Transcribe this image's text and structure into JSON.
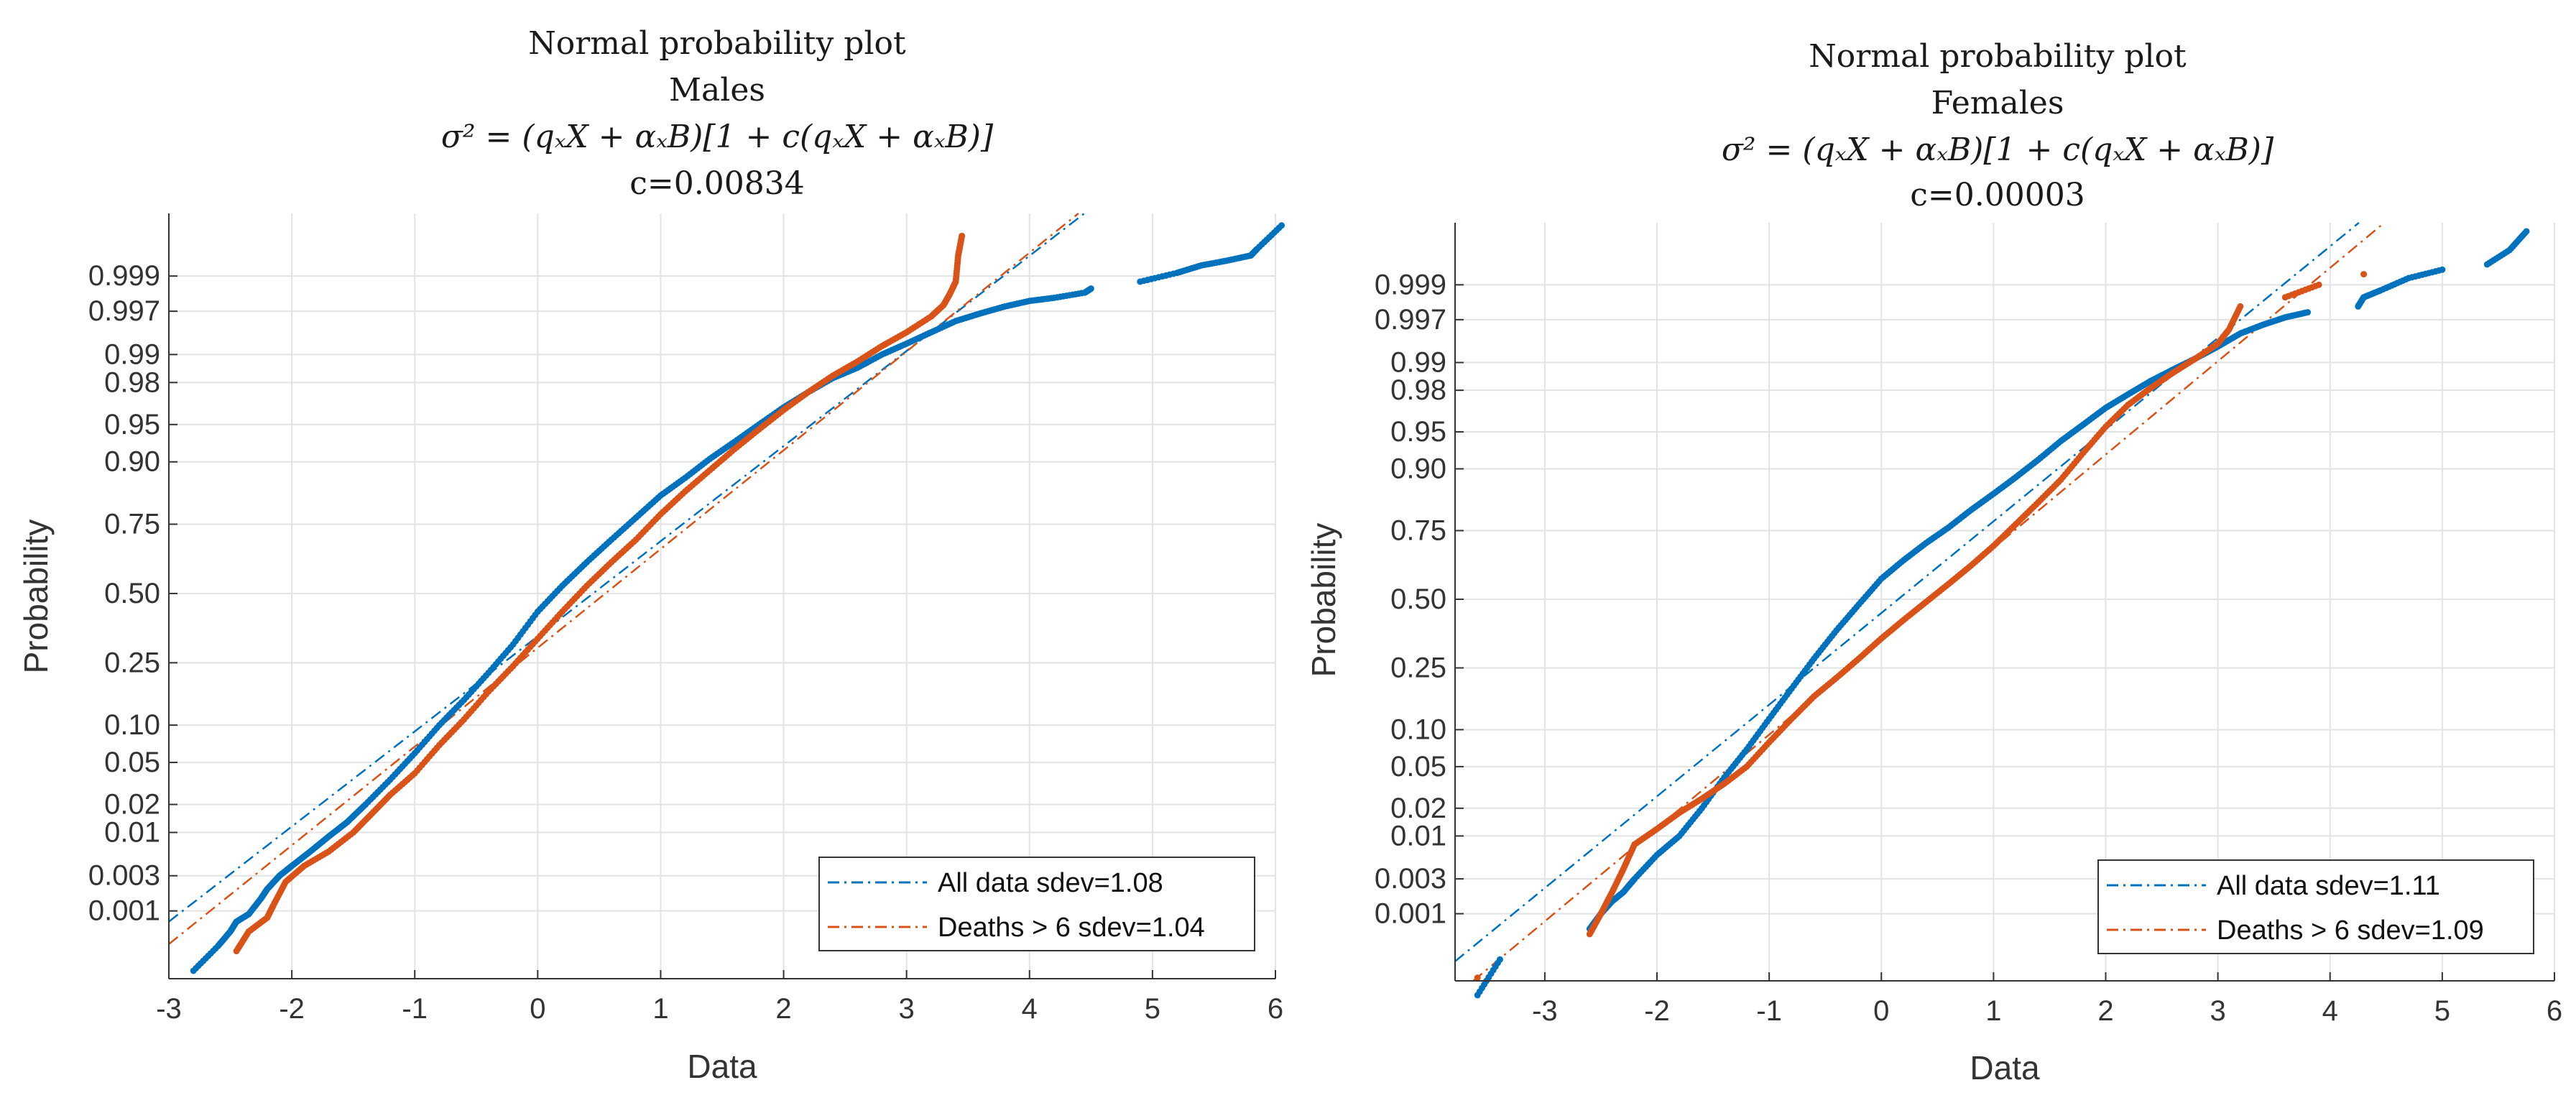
{
  "chart_data": [
    {
      "type": "scatter",
      "panel": "left",
      "title_lines": [
        "Normal probability plot",
        "Males",
        "σ² = (qₓX + αₓB)[1 + c(qₓX + αₓB)]",
        "c=0.00834"
      ],
      "xlabel": "Data",
      "ylabel": "Probability",
      "xlim": [
        -3,
        6
      ],
      "xticks": [
        -3,
        -2,
        -1,
        0,
        1,
        2,
        3,
        4,
        5,
        6
      ],
      "ytick_probabilities": [
        0.001,
        0.003,
        0.01,
        0.02,
        0.05,
        0.1,
        0.25,
        0.5,
        0.75,
        0.9,
        0.95,
        0.98,
        0.99,
        0.997,
        0.999
      ],
      "ytick_labels": [
        "0.001",
        "0.003",
        "0.01",
        "0.02",
        "0.05",
        "0.10",
        "0.25",
        "0.50",
        "0.75",
        "0.90",
        "0.95",
        "0.98",
        "0.99",
        "0.997",
        "0.999"
      ],
      "grid": true,
      "legend_position": "bottom-right",
      "series": [
        {
          "name": "All data sdev=1.08",
          "color": "#0072BD",
          "fit_line": {
            "mean": 0.45,
            "sd": 1.08
          },
          "points": [
            [
              -2.8,
              0.00012
            ],
            [
              -2.6,
              0.0003
            ],
            [
              -2.5,
              0.0005
            ],
            [
              -2.45,
              0.0007
            ],
            [
              -2.35,
              0.0009
            ],
            [
              -2.25,
              0.0015
            ],
            [
              -2.2,
              0.002
            ],
            [
              -2.1,
              0.003
            ],
            [
              -2.0,
              0.004
            ],
            [
              -1.85,
              0.006
            ],
            [
              -1.7,
              0.009
            ],
            [
              -1.55,
              0.013
            ],
            [
              -1.4,
              0.02
            ],
            [
              -1.2,
              0.035
            ],
            [
              -1.0,
              0.06
            ],
            [
              -0.8,
              0.1
            ],
            [
              -0.6,
              0.15
            ],
            [
              -0.4,
              0.22
            ],
            [
              -0.2,
              0.31
            ],
            [
              0.0,
              0.43
            ],
            [
              0.2,
              0.53
            ],
            [
              0.4,
              0.62
            ],
            [
              0.6,
              0.7
            ],
            [
              0.8,
              0.77
            ],
            [
              1.0,
              0.83
            ],
            [
              1.2,
              0.87
            ],
            [
              1.4,
              0.905
            ],
            [
              1.6,
              0.93
            ],
            [
              1.8,
              0.95
            ],
            [
              2.0,
              0.965
            ],
            [
              2.2,
              0.975
            ],
            [
              2.4,
              0.982
            ],
            [
              2.6,
              0.986
            ],
            [
              2.8,
              0.99
            ],
            [
              3.0,
              0.9925
            ],
            [
              3.2,
              0.9945
            ],
            [
              3.4,
              0.996
            ],
            [
              3.6,
              0.9968
            ],
            [
              3.8,
              0.9974
            ],
            [
              4.0,
              0.9978
            ],
            [
              4.2,
              0.998
            ],
            [
              4.45,
              0.9983
            ],
            [
              4.5,
              0.9985
            ],
            [
              4.9,
              0.9988
            ],
            [
              5.2,
              0.9991
            ],
            [
              5.4,
              0.9993
            ],
            [
              5.6,
              0.9994
            ],
            [
              5.8,
              0.9995
            ],
            [
              5.85,
              0.9996
            ],
            [
              6.05,
              0.99983
            ]
          ]
        },
        {
          "name": "Deaths > 6 sdev=1.04",
          "color": "#D95319",
          "fit_line": {
            "mean": 0.55,
            "sd": 1.04
          },
          "points": [
            [
              -2.45,
              0.00025
            ],
            [
              -2.35,
              0.0005
            ],
            [
              -2.2,
              0.0008
            ],
            [
              -2.15,
              0.0012
            ],
            [
              -2.05,
              0.0025
            ],
            [
              -1.9,
              0.004
            ],
            [
              -1.7,
              0.006
            ],
            [
              -1.5,
              0.01
            ],
            [
              -1.35,
              0.016
            ],
            [
              -1.2,
              0.025
            ],
            [
              -1.0,
              0.04
            ],
            [
              -0.8,
              0.07
            ],
            [
              -0.6,
              0.11
            ],
            [
              -0.4,
              0.17
            ],
            [
              -0.2,
              0.24
            ],
            [
              0.0,
              0.33
            ],
            [
              0.2,
              0.43
            ],
            [
              0.4,
              0.53
            ],
            [
              0.6,
              0.62
            ],
            [
              0.8,
              0.7
            ],
            [
              1.0,
              0.78
            ],
            [
              1.2,
              0.84
            ],
            [
              1.4,
              0.885
            ],
            [
              1.6,
              0.92
            ],
            [
              1.8,
              0.945
            ],
            [
              2.0,
              0.963
            ],
            [
              2.2,
              0.975
            ],
            [
              2.4,
              0.983
            ],
            [
              2.6,
              0.988
            ],
            [
              2.8,
              0.992
            ],
            [
              3.0,
              0.9945
            ],
            [
              3.2,
              0.9965
            ],
            [
              3.3,
              0.9975
            ],
            [
              3.35,
              0.9982
            ],
            [
              3.4,
              0.9988
            ],
            [
              3.42,
              0.9995
            ],
            [
              3.45,
              0.99975
            ]
          ]
        }
      ]
    },
    {
      "type": "scatter",
      "panel": "right",
      "title_lines": [
        "Normal probability plot",
        "Females",
        "σ² = (qₓX + αₓB)[1 + c(qₓX + αₓB)]",
        "c=0.00003"
      ],
      "xlabel": "Data",
      "ylabel": "Probability",
      "xlim": [
        -3.8,
        6
      ],
      "xticks": [
        -3,
        -2,
        -1,
        0,
        1,
        2,
        3,
        4,
        5,
        6
      ],
      "ytick_probabilities": [
        0.001,
        0.003,
        0.01,
        0.02,
        0.05,
        0.1,
        0.25,
        0.5,
        0.75,
        0.9,
        0.95,
        0.98,
        0.99,
        0.997,
        0.999
      ],
      "ytick_labels": [
        "0.001",
        "0.003",
        "0.01",
        "0.02",
        "0.05",
        "0.10",
        "0.25",
        "0.50",
        "0.75",
        "0.90",
        "0.95",
        "0.98",
        "0.99",
        "0.997",
        "0.999"
      ],
      "grid": true,
      "legend_position": "bottom-right",
      "series": [
        {
          "name": "All data sdev=1.11",
          "color": "#0072BD",
          "fit_line": {
            "mean": 0.15,
            "sd": 1.11
          },
          "points": [
            [
              -3.6,
              5e-05
            ],
            [
              -3.4,
              0.0002
            ],
            [
              -2.6,
              0.0006
            ],
            [
              -2.5,
              0.001
            ],
            [
              -2.4,
              0.0015
            ],
            [
              -2.3,
              0.002
            ],
            [
              -2.2,
              0.003
            ],
            [
              -2.0,
              0.006
            ],
            [
              -1.8,
              0.01
            ],
            [
              -1.6,
              0.02
            ],
            [
              -1.4,
              0.04
            ],
            [
              -1.2,
              0.07
            ],
            [
              -1.0,
              0.12
            ],
            [
              -0.8,
              0.19
            ],
            [
              -0.6,
              0.28
            ],
            [
              -0.4,
              0.38
            ],
            [
              -0.2,
              0.48
            ],
            [
              0.0,
              0.58
            ],
            [
              0.2,
              0.65
            ],
            [
              0.4,
              0.71
            ],
            [
              0.6,
              0.76
            ],
            [
              0.8,
              0.81
            ],
            [
              1.0,
              0.85
            ],
            [
              1.2,
              0.885
            ],
            [
              1.4,
              0.915
            ],
            [
              1.6,
              0.94
            ],
            [
              1.8,
              0.957
            ],
            [
              2.0,
              0.97
            ],
            [
              2.2,
              0.978
            ],
            [
              2.4,
              0.984
            ],
            [
              2.6,
              0.988
            ],
            [
              2.8,
              0.991
            ],
            [
              3.0,
              0.9935
            ],
            [
              3.2,
              0.9955
            ],
            [
              3.4,
              0.9965
            ],
            [
              3.6,
              0.9972
            ],
            [
              3.8,
              0.9976
            ],
            [
              4.25,
              0.998
            ],
            [
              4.3,
              0.9985
            ],
            [
              4.45,
              0.9988
            ],
            [
              4.7,
              0.9992
            ],
            [
              5.0,
              0.9994
            ],
            [
              5.4,
              0.9995
            ],
            [
              5.6,
              0.9997
            ],
            [
              5.75,
              0.99985
            ]
          ]
        },
        {
          "name": "Deaths > 6 sdev=1.09",
          "color": "#D95319",
          "fit_line": {
            "mean": 0.45,
            "sd": 1.09
          },
          "points": [
            [
              -3.6,
              0.0001
            ],
            [
              -2.6,
              0.0005
            ],
            [
              -2.5,
              0.001
            ],
            [
              -2.4,
              0.002
            ],
            [
              -2.3,
              0.004
            ],
            [
              -2.2,
              0.008
            ],
            [
              -2.0,
              0.012
            ],
            [
              -1.8,
              0.018
            ],
            [
              -1.6,
              0.025
            ],
            [
              -1.4,
              0.035
            ],
            [
              -1.2,
              0.05
            ],
            [
              -1.0,
              0.08
            ],
            [
              -0.8,
              0.12
            ],
            [
              -0.6,
              0.17
            ],
            [
              -0.4,
              0.22
            ],
            [
              -0.2,
              0.28
            ],
            [
              0.0,
              0.35
            ],
            [
              0.2,
              0.42
            ],
            [
              0.4,
              0.49
            ],
            [
              0.6,
              0.56
            ],
            [
              0.8,
              0.63
            ],
            [
              1.0,
              0.7
            ],
            [
              1.2,
              0.77
            ],
            [
              1.4,
              0.83
            ],
            [
              1.6,
              0.88
            ],
            [
              1.8,
              0.925
            ],
            [
              2.0,
              0.955
            ],
            [
              2.2,
              0.972
            ],
            [
              2.4,
              0.981
            ],
            [
              2.6,
              0.987
            ],
            [
              2.8,
              0.991
            ],
            [
              3.0,
              0.994
            ],
            [
              3.1,
              0.996
            ],
            [
              3.2,
              0.998
            ],
            [
              3.6,
              0.9985
            ],
            [
              3.9,
              0.999
            ],
            [
              4.3,
              0.9993
            ]
          ]
        }
      ]
    }
  ]
}
